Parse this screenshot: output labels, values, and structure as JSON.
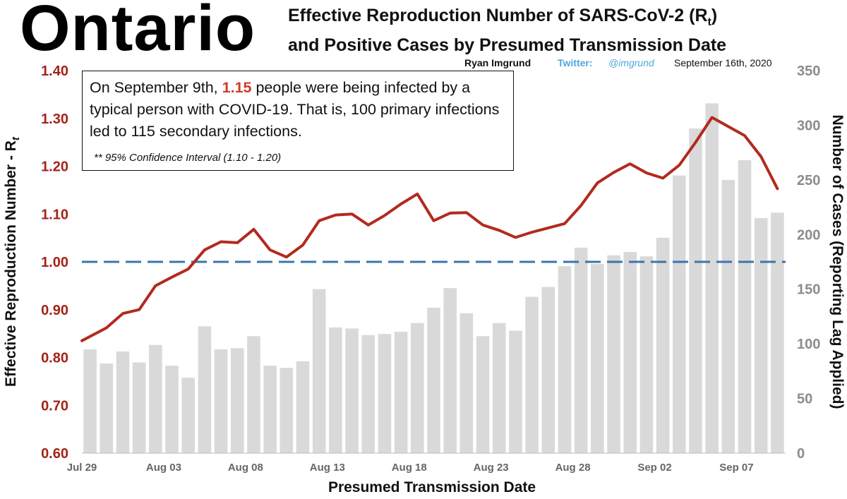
{
  "header": {
    "brand": "Ontario",
    "title_line1": "Effective Reproduction Number of SARS-CoV-2 (R",
    "title_sub": "t",
    "title_line1_end": ")",
    "title_line2": "and Positive Cases by Presumed Transmission Date",
    "author": "Ryan Imgrund",
    "twitter_label": "Twitter:",
    "twitter_handle": "@imgrund",
    "date": "September 16th, 2020"
  },
  "annotation": {
    "pre": "On September 9th, ",
    "highlight": "1.15",
    "post": " people were being infected by a typical person with COVID-19. That is, 100 primary infections led to 115 secondary infections.",
    "ci": "** 95% Confidence Interval (1.10 - 1.20)"
  },
  "colors": {
    "rt_line": "#b22a1f",
    "rt_axis_text": "#a3231a",
    "reference_line": "#3a75b0",
    "bars": "#d9d9d9",
    "cases_axis_text": "#8c8c8c",
    "highlight": "#d03a2a",
    "twitter": "#4ea8dc"
  },
  "chart_data": {
    "type": "bar+line",
    "xlabel": "Presumed Transmission Date",
    "ylabel_left": "Effective Reproduction Number - R",
    "ylabel_left_sub": "t",
    "ylabel_right": "Number of Cases (Reporting Lag Applied)",
    "ylim_left": [
      0.6,
      1.4
    ],
    "yticks_left": [
      "0.60",
      "0.70",
      "0.80",
      "0.90",
      "1.00",
      "1.10",
      "1.20",
      "1.30",
      "1.40"
    ],
    "ylim_right": [
      0,
      350
    ],
    "yticks_right": [
      "0",
      "50",
      "100",
      "150",
      "200",
      "250",
      "300",
      "350"
    ],
    "xticks": [
      {
        "index": 0,
        "label": "Jul 29"
      },
      {
        "index": 5,
        "label": "Aug 03"
      },
      {
        "index": 10,
        "label": "Aug 08"
      },
      {
        "index": 15,
        "label": "Aug 13"
      },
      {
        "index": 20,
        "label": "Aug 18"
      },
      {
        "index": 25,
        "label": "Aug 23"
      },
      {
        "index": 30,
        "label": "Aug 28"
      },
      {
        "index": 35,
        "label": "Sep 02"
      },
      {
        "index": 40,
        "label": "Sep 07"
      }
    ],
    "dates": [
      "Jul 29",
      "Jul 30",
      "Jul 31",
      "Aug 01",
      "Aug 02",
      "Aug 03",
      "Aug 04",
      "Aug 05",
      "Aug 06",
      "Aug 07",
      "Aug 08",
      "Aug 09",
      "Aug 10",
      "Aug 11",
      "Aug 12",
      "Aug 13",
      "Aug 14",
      "Aug 15",
      "Aug 16",
      "Aug 17",
      "Aug 18",
      "Aug 19",
      "Aug 20",
      "Aug 21",
      "Aug 22",
      "Aug 23",
      "Aug 24",
      "Aug 25",
      "Aug 26",
      "Aug 27",
      "Aug 28",
      "Aug 29",
      "Aug 30",
      "Aug 31",
      "Sep 01",
      "Sep 02",
      "Sep 03",
      "Sep 04",
      "Sep 05",
      "Sep 06",
      "Sep 07",
      "Sep 08",
      "Sep 09"
    ],
    "cases": [
      95,
      82,
      93,
      83,
      99,
      80,
      69,
      116,
      95,
      96,
      107,
      80,
      78,
      84,
      150,
      115,
      114,
      108,
      109,
      111,
      119,
      133,
      151,
      128,
      107,
      119,
      112,
      143,
      152,
      171,
      188,
      173,
      181,
      184,
      180,
      197,
      254,
      297,
      320,
      250,
      268,
      215,
      220
    ],
    "rt": [
      0.835,
      0.862,
      0.892,
      0.9,
      0.95,
      0.968,
      0.985,
      1.025,
      1.042,
      1.04,
      1.068,
      1.025,
      1.01,
      1.035,
      1.086,
      1.098,
      1.1,
      1.077,
      1.097,
      1.121,
      1.142,
      1.086,
      1.102,
      1.103,
      1.077,
      1.066,
      1.051,
      1.062,
      1.071,
      1.08,
      1.118,
      1.165,
      1.187,
      1.205,
      1.186,
      1.175,
      1.202,
      1.25,
      1.302,
      1.283,
      1.264,
      1.22,
      1.153
    ],
    "reference_rt": 1.0
  }
}
